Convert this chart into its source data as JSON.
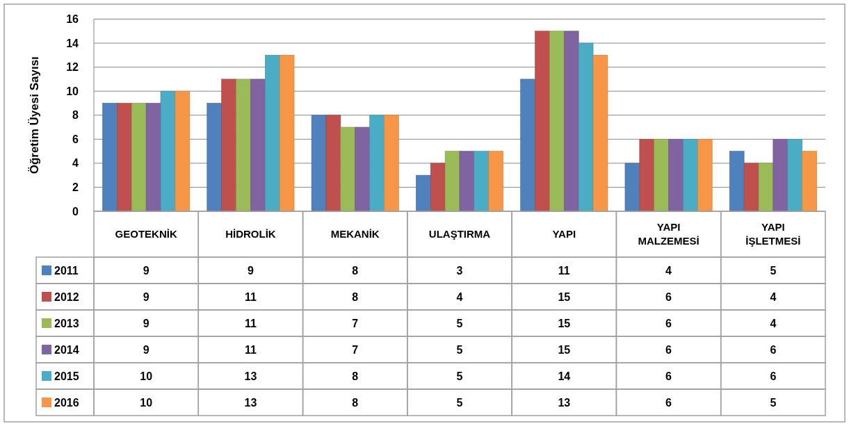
{
  "chart_data": {
    "type": "bar",
    "ylabel": "Öğretim Üyesi Sayısı",
    "categories": [
      "GEOTEKNİK",
      "HİDROLİK",
      "MEKANİK",
      "ULAŞTIRMA",
      "YAPI",
      "YAPI MALZEMESİ",
      "YAPI İŞLETMESİ"
    ],
    "series": [
      {
        "name": "2011",
        "color": "#4f81bd",
        "values": [
          9,
          9,
          8,
          3,
          11,
          4,
          5
        ]
      },
      {
        "name": "2012",
        "color": "#c0504d",
        "values": [
          9,
          11,
          8,
          4,
          15,
          6,
          4
        ]
      },
      {
        "name": "2013",
        "color": "#9bbb59",
        "values": [
          9,
          11,
          7,
          5,
          15,
          6,
          4
        ]
      },
      {
        "name": "2014",
        "color": "#8064a2",
        "values": [
          9,
          11,
          7,
          5,
          15,
          6,
          6
        ]
      },
      {
        "name": "2015",
        "color": "#4bacc6",
        "values": [
          10,
          13,
          8,
          5,
          14,
          6,
          6
        ]
      },
      {
        "name": "2016",
        "color": "#f79646",
        "values": [
          10,
          13,
          8,
          5,
          13,
          6,
          5
        ]
      }
    ],
    "ylim": [
      0,
      16
    ],
    "yticks": [
      0,
      2,
      4,
      6,
      8,
      10,
      12,
      14,
      16
    ],
    "grid": "y",
    "data_labels": true,
    "legend": "bottom left"
  }
}
